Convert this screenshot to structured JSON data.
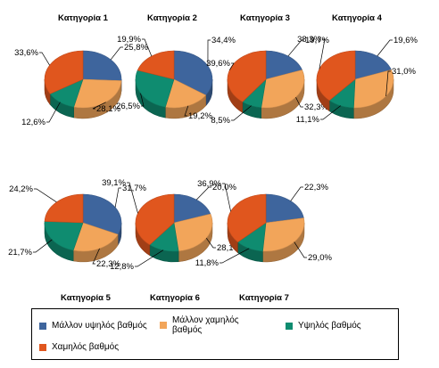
{
  "chart_data": {
    "type": "pie",
    "series_names": [
      "Μάλλον υψηλός βαθμός",
      "Μάλλον χαμηλός βαθμός",
      "Υψηλός βαθμός",
      "Χαμηλός βαθμός"
    ],
    "colors": [
      "#3E659D",
      "#F2A55A",
      "#0F8C70",
      "#E0561E"
    ],
    "categories": [
      "Κατηγορία 1",
      "Κατηγορία 2",
      "Κατηγορία 3",
      "Κατηγορία 4",
      "Κατηγορία 5",
      "Κατηγορία 6",
      "Κατηγορία 7"
    ],
    "pies": [
      {
        "title": "Κατηγορία 1",
        "values": [
          25.8,
          28.1,
          12.6,
          33.6
        ],
        "labels": [
          "25,8%",
          "28,1%",
          "12,6%",
          "33,6%"
        ]
      },
      {
        "title": "Κατηγορία 2",
        "values": [
          34.4,
          19.2,
          26.5,
          19.9
        ],
        "labels": [
          "34,4%",
          "19,2%",
          "26,5%",
          "19,9%"
        ]
      },
      {
        "title": "Κατηγορία 3",
        "values": [
          19.7,
          32.3,
          8.5,
          39.6
        ],
        "labels": [
          "19,7%",
          "32,3%",
          "8,5%",
          "39,6%"
        ]
      },
      {
        "title": "Κατηγορία 4",
        "values": [
          19.6,
          31.0,
          11.1,
          38.3
        ],
        "labels": [
          "19,6%",
          "31,0%",
          "11,1%",
          "38,3%"
        ]
      },
      {
        "title": "Κατηγορία 5",
        "values": [
          31.7,
          22.3,
          21.7,
          24.2
        ],
        "labels": [
          "31,7%",
          "22,3%",
          "21,7%",
          "24,2%"
        ]
      },
      {
        "title": "Κατηγορία 6",
        "values": [
          20.0,
          28.1,
          12.8,
          39.1
        ],
        "labels": [
          "20,0%",
          "28,1%",
          "12,8%",
          "39,1%"
        ]
      },
      {
        "title": "Κατηγορία 7",
        "values": [
          22.3,
          29.0,
          11.8,
          36.9
        ],
        "labels": [
          "22,3%",
          "29,0%",
          "11,8%",
          "36,9%"
        ]
      }
    ],
    "legend": {
      "position": "bottom"
    }
  }
}
